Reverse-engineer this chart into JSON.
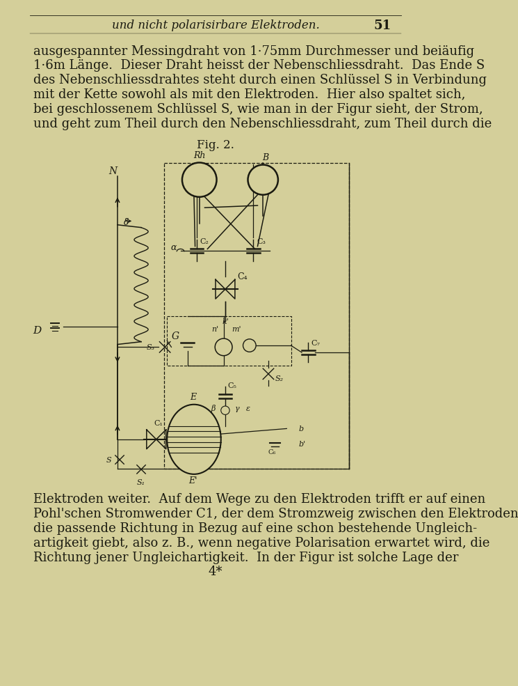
{
  "background_color": "#d4cf9a",
  "text_color": "#1a1a10",
  "diagram_color": "#1a1a10",
  "header_text": "und nicht polarisirbare Elektroden.",
  "header_page": "51",
  "top_lines": [
    "ausgespannter Messingdraht von 1·75mm Durchmesser und beiäufig",
    "1·6m Länge.  Dieser Draht heisst der Nebenschliessdraht.  Das Ende S",
    "des Nebenschliessdrahtes steht durch einen Schlüssel S in Verbindung",
    "mit der Kette sowohl als mit den Elektroden.  Hier also spaltet sich,",
    "bei geschlossenem Schlüssel S, wie man in der Figur sieht, der Strom,",
    "und geht zum Theil durch den Nebenschliessdraht, zum Theil durch die"
  ],
  "bottom_lines": [
    "Elektroden weiter.  Auf dem Wege zu den Elektroden trifft er auf einen",
    "Pohl'schen Stromwender C1, der dem Stromzweig zwischen den Elektroden",
    "die passende Richtung in Bezug auf eine schon bestehende Ungleich-",
    "artigkeit giebt, also z. B., wenn negative Polarisation erwartet wird, die",
    "Richtung jener Ungleichartigkeit.  In der Figur ist solche Lage der",
    "4*"
  ],
  "fig_label": "Fig. 2."
}
